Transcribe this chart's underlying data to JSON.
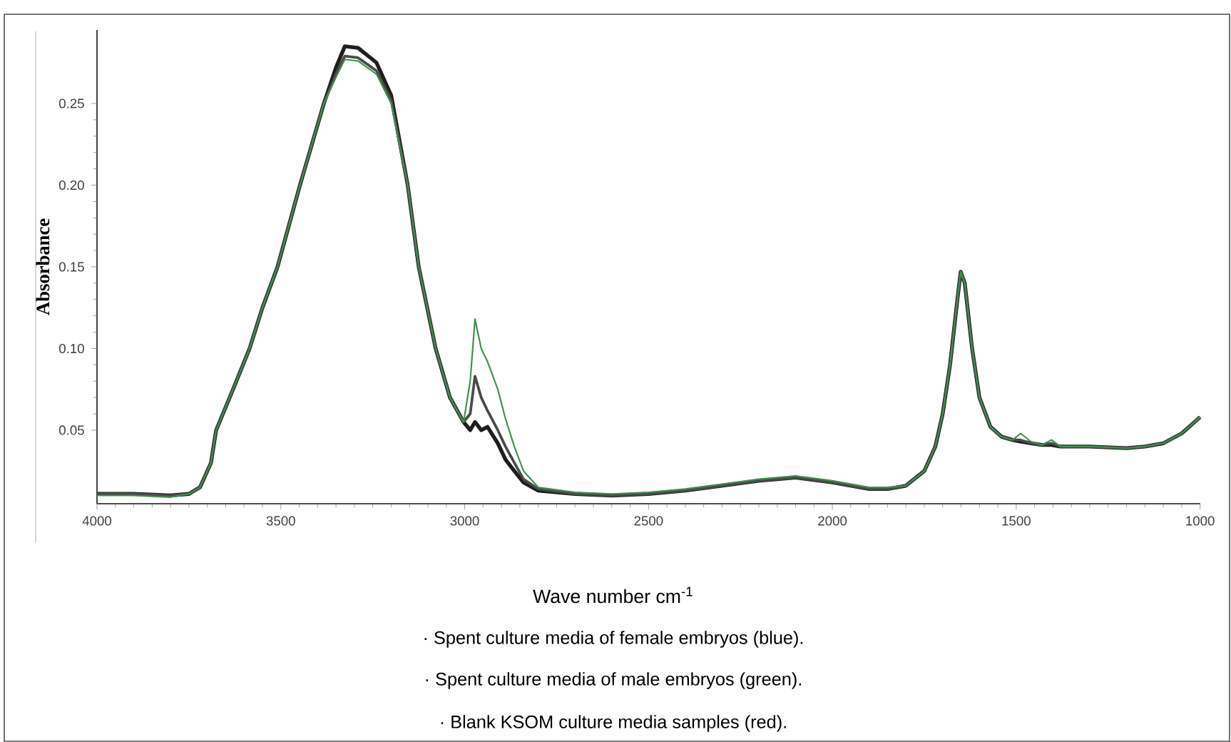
{
  "chart_data": {
    "type": "line",
    "xlabel": "Wave number cm$^{-1}$",
    "ylabel": "Absorbance",
    "annotations": [
      "· Spent culture media of female embryos (blue).",
      "· Spent culture media of male embryos (green).",
      "· Blank KSOM culture media samples (red)."
    ],
    "x": [
      4000,
      3900,
      3800,
      3750,
      3720,
      3690,
      3676,
      3630,
      3585,
      3550,
      3509,
      3448,
      3383,
      3350,
      3326,
      3290,
      3240,
      3200,
      3155,
      3125,
      3079,
      3040,
      3003,
      2985,
      2972,
      2955,
      2938,
      2910,
      2889,
      2865,
      2840,
      2800,
      2700,
      2600,
      2500,
      2400,
      2300,
      2200,
      2100,
      2000,
      1900,
      1850,
      1800,
      1750,
      1720,
      1700,
      1680,
      1660,
      1651,
      1640,
      1620,
      1600,
      1570,
      1540,
      1510,
      1488,
      1460,
      1430,
      1404,
      1380,
      1300,
      1200,
      1150,
      1100,
      1050,
      1000
    ],
    "series": [
      {
        "color": "#1e1e1e",
        "values": [
          0.011,
          0.011,
          0.01,
          0.011,
          0.015,
          0.03,
          0.05,
          0.075,
          0.1,
          0.125,
          0.15,
          0.2,
          0.25,
          0.272,
          0.285,
          0.284,
          0.275,
          0.255,
          0.2,
          0.15,
          0.1,
          0.07,
          0.055,
          0.05,
          0.055,
          0.05,
          0.052,
          0.042,
          0.032,
          0.025,
          0.018,
          0.013,
          0.011,
          0.01,
          0.011,
          0.013,
          0.016,
          0.019,
          0.021,
          0.018,
          0.014,
          0.014,
          0.016,
          0.025,
          0.04,
          0.06,
          0.09,
          0.13,
          0.147,
          0.14,
          0.1,
          0.07,
          0.052,
          0.046,
          0.044,
          0.043,
          0.042,
          0.041,
          0.041,
          0.04,
          0.04,
          0.039,
          0.04,
          0.042,
          0.048,
          0.058
        ]
      },
      {
        "color": "#4a4a4a",
        "values": [
          0.011,
          0.011,
          0.01,
          0.011,
          0.015,
          0.03,
          0.05,
          0.075,
          0.1,
          0.125,
          0.15,
          0.2,
          0.25,
          0.268,
          0.279,
          0.278,
          0.27,
          0.252,
          0.2,
          0.15,
          0.1,
          0.07,
          0.055,
          0.06,
          0.083,
          0.07,
          0.062,
          0.05,
          0.04,
          0.03,
          0.02,
          0.014,
          0.011,
          0.01,
          0.011,
          0.013,
          0.016,
          0.019,
          0.021,
          0.018,
          0.014,
          0.014,
          0.016,
          0.025,
          0.04,
          0.06,
          0.09,
          0.13,
          0.147,
          0.14,
          0.1,
          0.07,
          0.052,
          0.046,
          0.044,
          0.044,
          0.042,
          0.041,
          0.042,
          0.04,
          0.04,
          0.039,
          0.04,
          0.042,
          0.048,
          0.058
        ]
      },
      {
        "color": "#3f8f4f",
        "values": [
          0.01,
          0.01,
          0.009,
          0.011,
          0.015,
          0.03,
          0.05,
          0.075,
          0.1,
          0.125,
          0.15,
          0.2,
          0.25,
          0.266,
          0.277,
          0.276,
          0.268,
          0.25,
          0.2,
          0.15,
          0.1,
          0.07,
          0.055,
          0.08,
          0.118,
          0.1,
          0.092,
          0.075,
          0.057,
          0.04,
          0.025,
          0.015,
          0.012,
          0.011,
          0.012,
          0.014,
          0.017,
          0.02,
          0.022,
          0.019,
          0.015,
          0.015,
          0.016,
          0.025,
          0.04,
          0.06,
          0.09,
          0.13,
          0.147,
          0.14,
          0.1,
          0.07,
          0.052,
          0.046,
          0.044,
          0.048,
          0.043,
          0.041,
          0.044,
          0.04,
          0.04,
          0.039,
          0.04,
          0.042,
          0.048,
          0.058
        ]
      }
    ],
    "xlim": [
      4000,
      1000
    ],
    "ylim": [
      0.005,
      0.295
    ],
    "xticks": [
      4000,
      3500,
      3000,
      2500,
      2000,
      1500,
      1000
    ],
    "yticks": [
      0.05,
      {
        "value": 0.1,
        "label": "0.10"
      },
      0.15,
      {
        "value": 0.2,
        "label": "0.20"
      },
      0.25
    ]
  }
}
